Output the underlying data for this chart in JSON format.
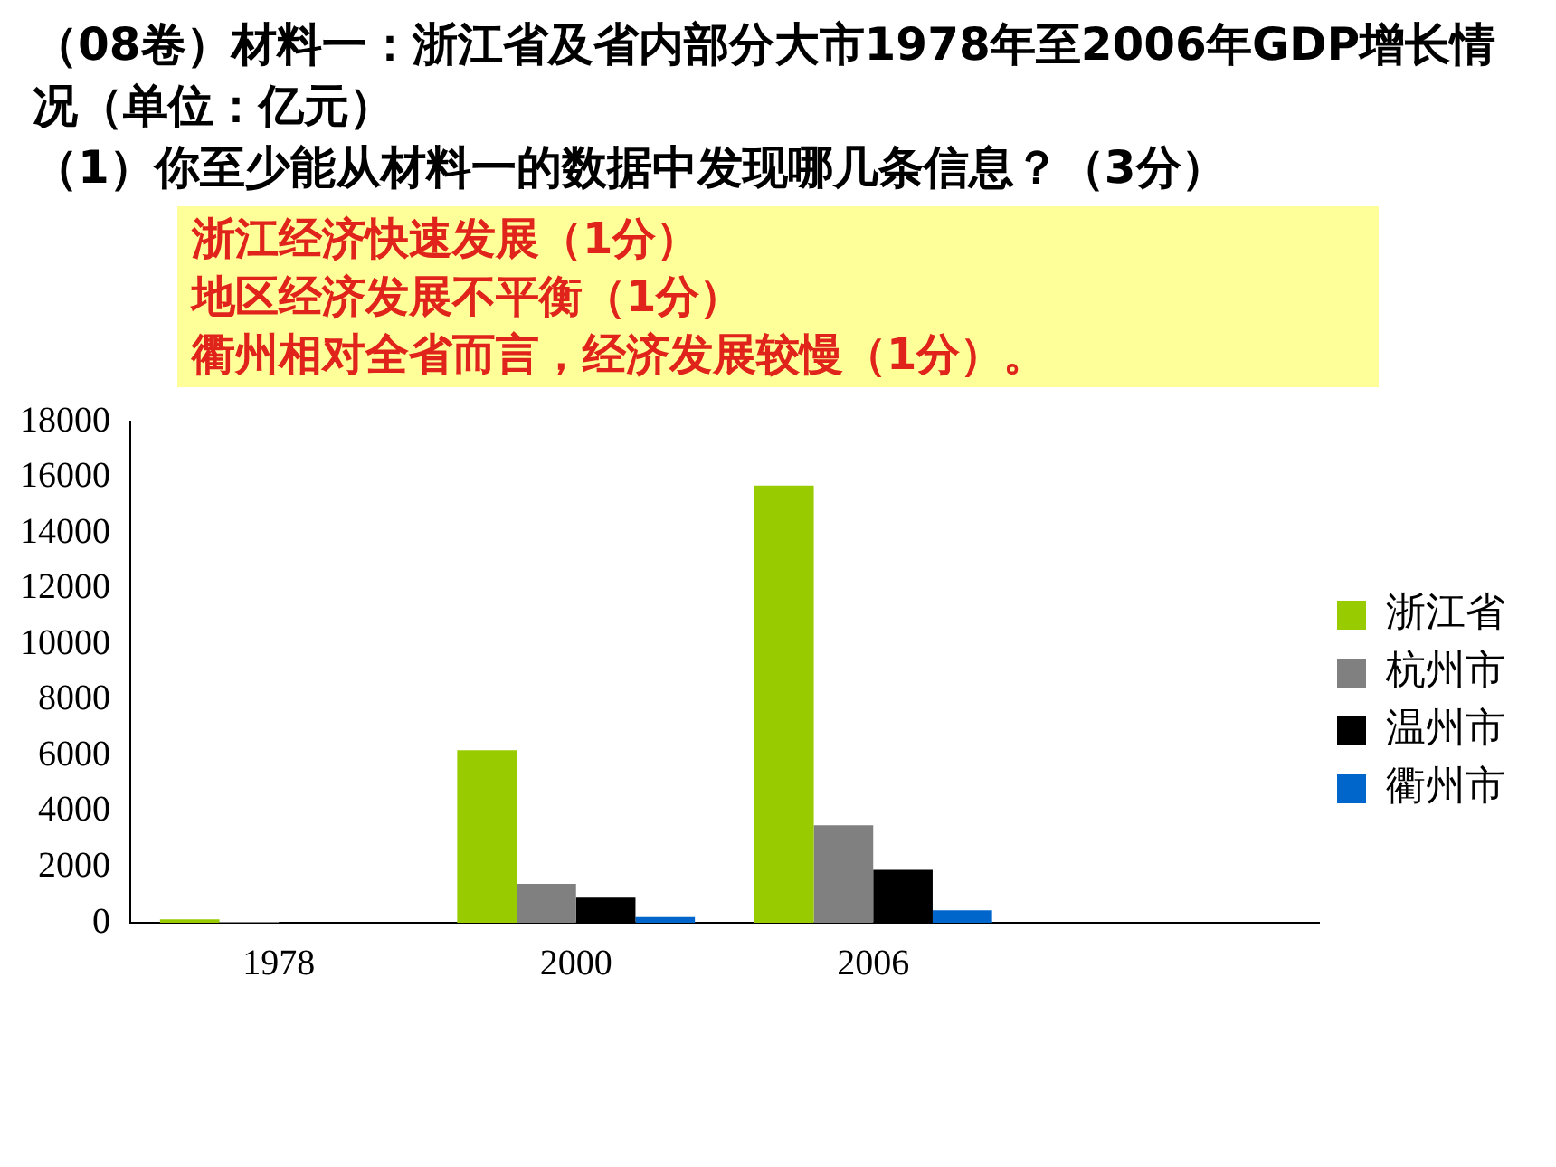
{
  "chart_data": {
    "type": "bar",
    "title": "（08卷）材料一：浙江省及省内部分大市1978年至2006年GDP增长情况（单位：亿元）",
    "subtitle": "（1）你至少能从材料一的数据中发现哪几条信息？（3分）",
    "annotations": [
      "浙江经济快速发展（1分）",
      "地区经济发展不平衡（1分）",
      "衢州相对全省而言，经济发展较慢（1分）。"
    ],
    "categories": [
      "1978",
      "2000",
      "2006",
      null
    ],
    "series": [
      {
        "name": "浙江省",
        "color": "#99cc00",
        "values": [
          120,
          6200,
          15700,
          null
        ]
      },
      {
        "name": "杭州市",
        "color": "#808080",
        "values": [
          30,
          1400,
          3500,
          null
        ]
      },
      {
        "name": "温州市",
        "color": "#000000",
        "values": [
          null,
          900,
          1900,
          null
        ]
      },
      {
        "name": "衢州市",
        "color": "#0066cc",
        "values": [
          null,
          200,
          450,
          null
        ]
      }
    ],
    "ylim": [
      0,
      18000
    ],
    "yticks": [
      0,
      2000,
      4000,
      6000,
      8000,
      10000,
      12000,
      14000,
      16000,
      18000
    ],
    "grid": false,
    "legend": "right"
  }
}
